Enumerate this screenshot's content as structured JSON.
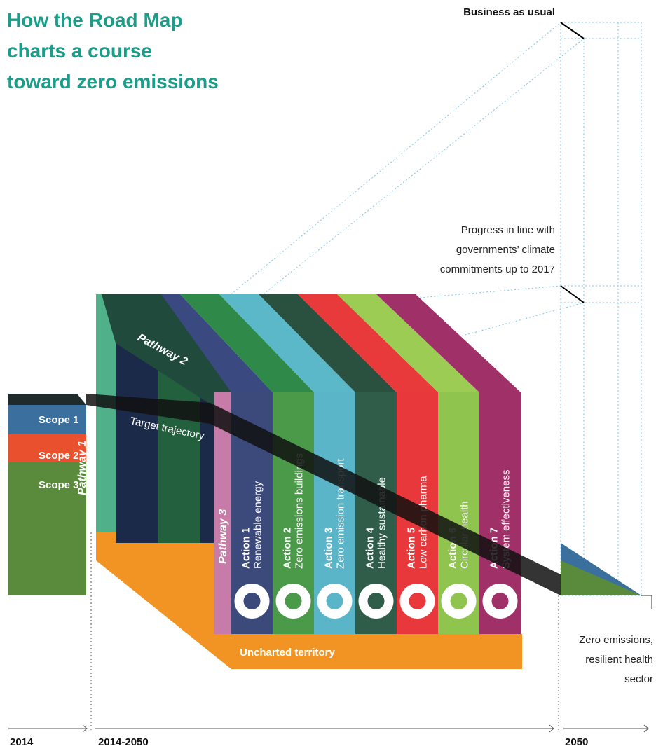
{
  "title": {
    "lines": [
      "How the Road Map",
      "charts a course",
      "toward zero emissions"
    ]
  },
  "annotations": {
    "business_as_usual": "Business as usual",
    "progress": [
      "Progress in line with",
      "governments’ climate",
      "commitments up to 2017"
    ],
    "target_trajectory": "Target trajectory",
    "uncharted": "Uncharted territory",
    "zero_emissions": [
      "Zero emissions,",
      "resilient health",
      "sector"
    ]
  },
  "scopes": [
    "Scope 1",
    "Scope 2",
    "Scope 3"
  ],
  "pathways": [
    "Pathway 1",
    "Pathway 2",
    "Pathway 3"
  ],
  "actions": [
    {
      "label": "Action 1",
      "name": "Renewable energy"
    },
    {
      "label": "Action 2",
      "name": "Zero emissions buildings"
    },
    {
      "label": "Action 3",
      "name": "Zero emission transport"
    },
    {
      "label": "Action 4",
      "name": "Healthy sustainable"
    },
    {
      "label": "Action 5",
      "name": "Low carbon pharma"
    },
    {
      "label": "Action 6",
      "name": "Circular health"
    },
    {
      "label": "Action 7",
      "name": "System effectiveness"
    }
  ],
  "timeline": [
    "2014",
    "2014-2050",
    "2050"
  ]
}
